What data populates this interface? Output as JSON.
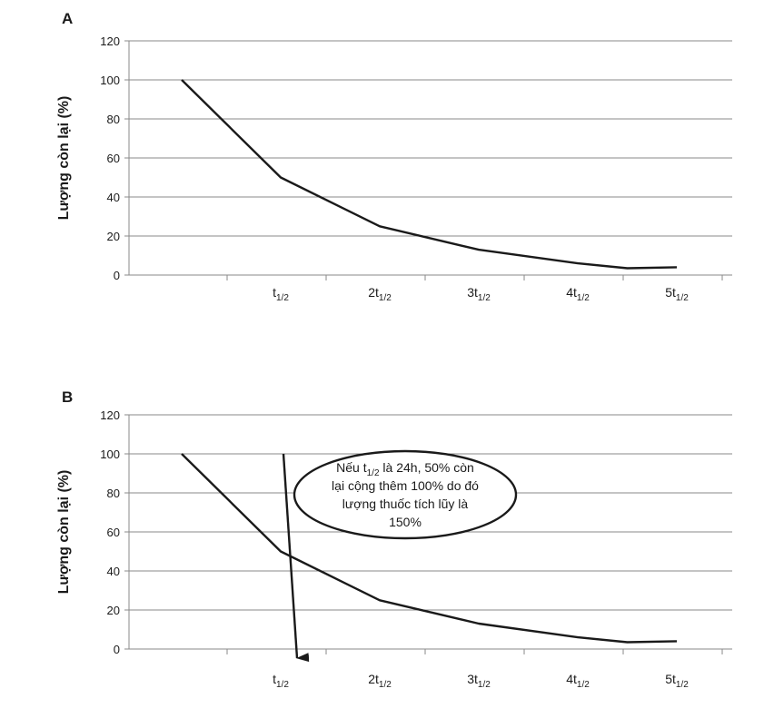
{
  "chart_data": [
    {
      "panel_label": "A",
      "type": "line",
      "ylabel": "Lượng còn lại (%)",
      "ylim": [
        0,
        120
      ],
      "yticks": [
        0,
        20,
        40,
        60,
        80,
        100,
        120
      ],
      "grid": true,
      "x_tick_labels": [
        {
          "base": "t",
          "sub": "1/2"
        },
        {
          "base": "2t",
          "sub": "1/2"
        },
        {
          "base": "3t",
          "sub": "1/2"
        },
        {
          "base": "4t",
          "sub": "1/2"
        },
        {
          "base": "5t",
          "sub": "1/2"
        }
      ],
      "x": [
        0,
        1,
        2,
        3,
        4,
        4.5,
        5
      ],
      "values": [
        100,
        50,
        25,
        13,
        6,
        3.5,
        4
      ]
    },
    {
      "panel_label": "B",
      "type": "line",
      "ylabel": "Lượng còn lại (%)",
      "ylim": [
        0,
        120
      ],
      "yticks": [
        0,
        20,
        40,
        60,
        80,
        100,
        120
      ],
      "grid": true,
      "x_tick_labels": [
        {
          "base": "t",
          "sub": "1/2"
        },
        {
          "base": "2t",
          "sub": "1/2"
        },
        {
          "base": "3t",
          "sub": "1/2"
        },
        {
          "base": "4t",
          "sub": "1/2"
        },
        {
          "base": "5t",
          "sub": "1/2"
        }
      ],
      "x": [
        0,
        1,
        2,
        3,
        4,
        4.5,
        5
      ],
      "values": [
        100,
        50,
        25,
        13,
        6,
        3.5,
        4
      ],
      "annotation": {
        "lines": [
          {
            "parts": [
              {
                "t": "Nếu t"
              },
              {
                "t": "1/2",
                "sub": true
              },
              {
                "t": " là 24h, 50% còn"
              }
            ]
          },
          {
            "parts": [
              {
                "t": "lại cộng thêm 100% do đó"
              }
            ]
          },
          {
            "parts": [
              {
                "t": "lượng thuốc tích lũy là"
              }
            ]
          },
          {
            "parts": [
              {
                "t": "150%"
              }
            ]
          }
        ],
        "arrow_from": {
          "x": 1,
          "y": 100
        },
        "arrow_to": {
          "x": 1,
          "y": 0
        }
      }
    }
  ]
}
